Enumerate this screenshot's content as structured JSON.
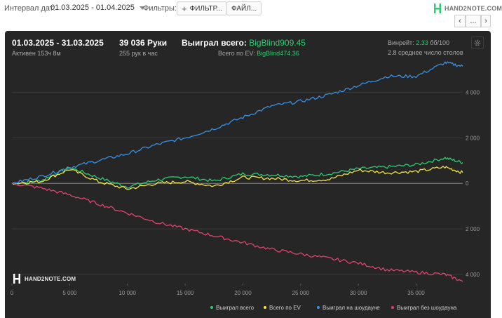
{
  "toolbar": {
    "interval_label": "Интервал дат:",
    "date_range": "01.03.2025 - 01.04.2025",
    "filters_label": "Фильтры:",
    "filter_button": "ФИЛЬТР...",
    "file_button": "ФАЙЛ...",
    "brand": "HAND2NOTE.COM",
    "prev_label": "‹",
    "more_label": "...",
    "next_label": "›"
  },
  "summary": {
    "period": "01.03.2025 - 31.03.2025",
    "active": "Активен 153ч 8м",
    "hands": "39 036 Руки",
    "hands_per_hour": "255 рук в час",
    "won_total_label": "Выиграл всего:",
    "won_total_value": "BigBlind909.45",
    "ev_label": "Всего по EV:",
    "ev_value": "BigBlind474.36",
    "winrate_label": "Винрейт:",
    "winrate_value": "2.33",
    "winrate_unit": "бб/100",
    "avg_tables": "2.8 среднее число столов"
  },
  "watermark": "HAND2NOTE.COM",
  "colors": {
    "background": "#262626",
    "won_total": "#2ecc71",
    "ev": "#f3e445",
    "showdown": "#3b8fe0",
    "non_showdown": "#e0436e",
    "accent_green": "#2ecc71"
  },
  "chart_data": {
    "type": "line",
    "x_ticks": [
      "0",
      "5 000",
      "10 000",
      "15 000",
      "20 000",
      "25 000",
      "30 000",
      "35 000"
    ],
    "y_ticks": [
      "4 000",
      "2 000",
      "0",
      "2 000",
      "4 000"
    ],
    "xlim": [
      0,
      39036
    ],
    "ylim": [
      -4400,
      5400
    ],
    "grid": true,
    "legend_position": "bottom-right",
    "x": [
      0,
      2500,
      5000,
      7500,
      10000,
      12500,
      15000,
      17500,
      20000,
      22500,
      25000,
      27500,
      30000,
      32500,
      35000,
      37500,
      39036
    ],
    "series": [
      {
        "name": "Выиграл всего",
        "color": "#2ecc71",
        "values": [
          0,
          120,
          700,
          250,
          -150,
          150,
          300,
          100,
          420,
          380,
          300,
          430,
          640,
          720,
          820,
          1120,
          909
        ]
      },
      {
        "name": "Всего по EV",
        "color": "#f3e445",
        "values": [
          0,
          80,
          620,
          80,
          -250,
          0,
          80,
          -120,
          260,
          220,
          120,
          180,
          580,
          470,
          520,
          720,
          474
        ]
      },
      {
        "name": "Выиграл на шоудауне",
        "color": "#3b8fe0",
        "values": [
          0,
          300,
          700,
          1000,
          1300,
          1700,
          2000,
          2400,
          2900,
          3400,
          3600,
          3900,
          4300,
          4700,
          4700,
          5300,
          5140
        ]
      },
      {
        "name": "Выиграл без шоудауна",
        "color": "#e0436e",
        "values": [
          0,
          -200,
          -500,
          -900,
          -1300,
          -1700,
          -2000,
          -2300,
          -2600,
          -2900,
          -3100,
          -3300,
          -3500,
          -3800,
          -3900,
          -4000,
          -4300
        ]
      }
    ]
  }
}
